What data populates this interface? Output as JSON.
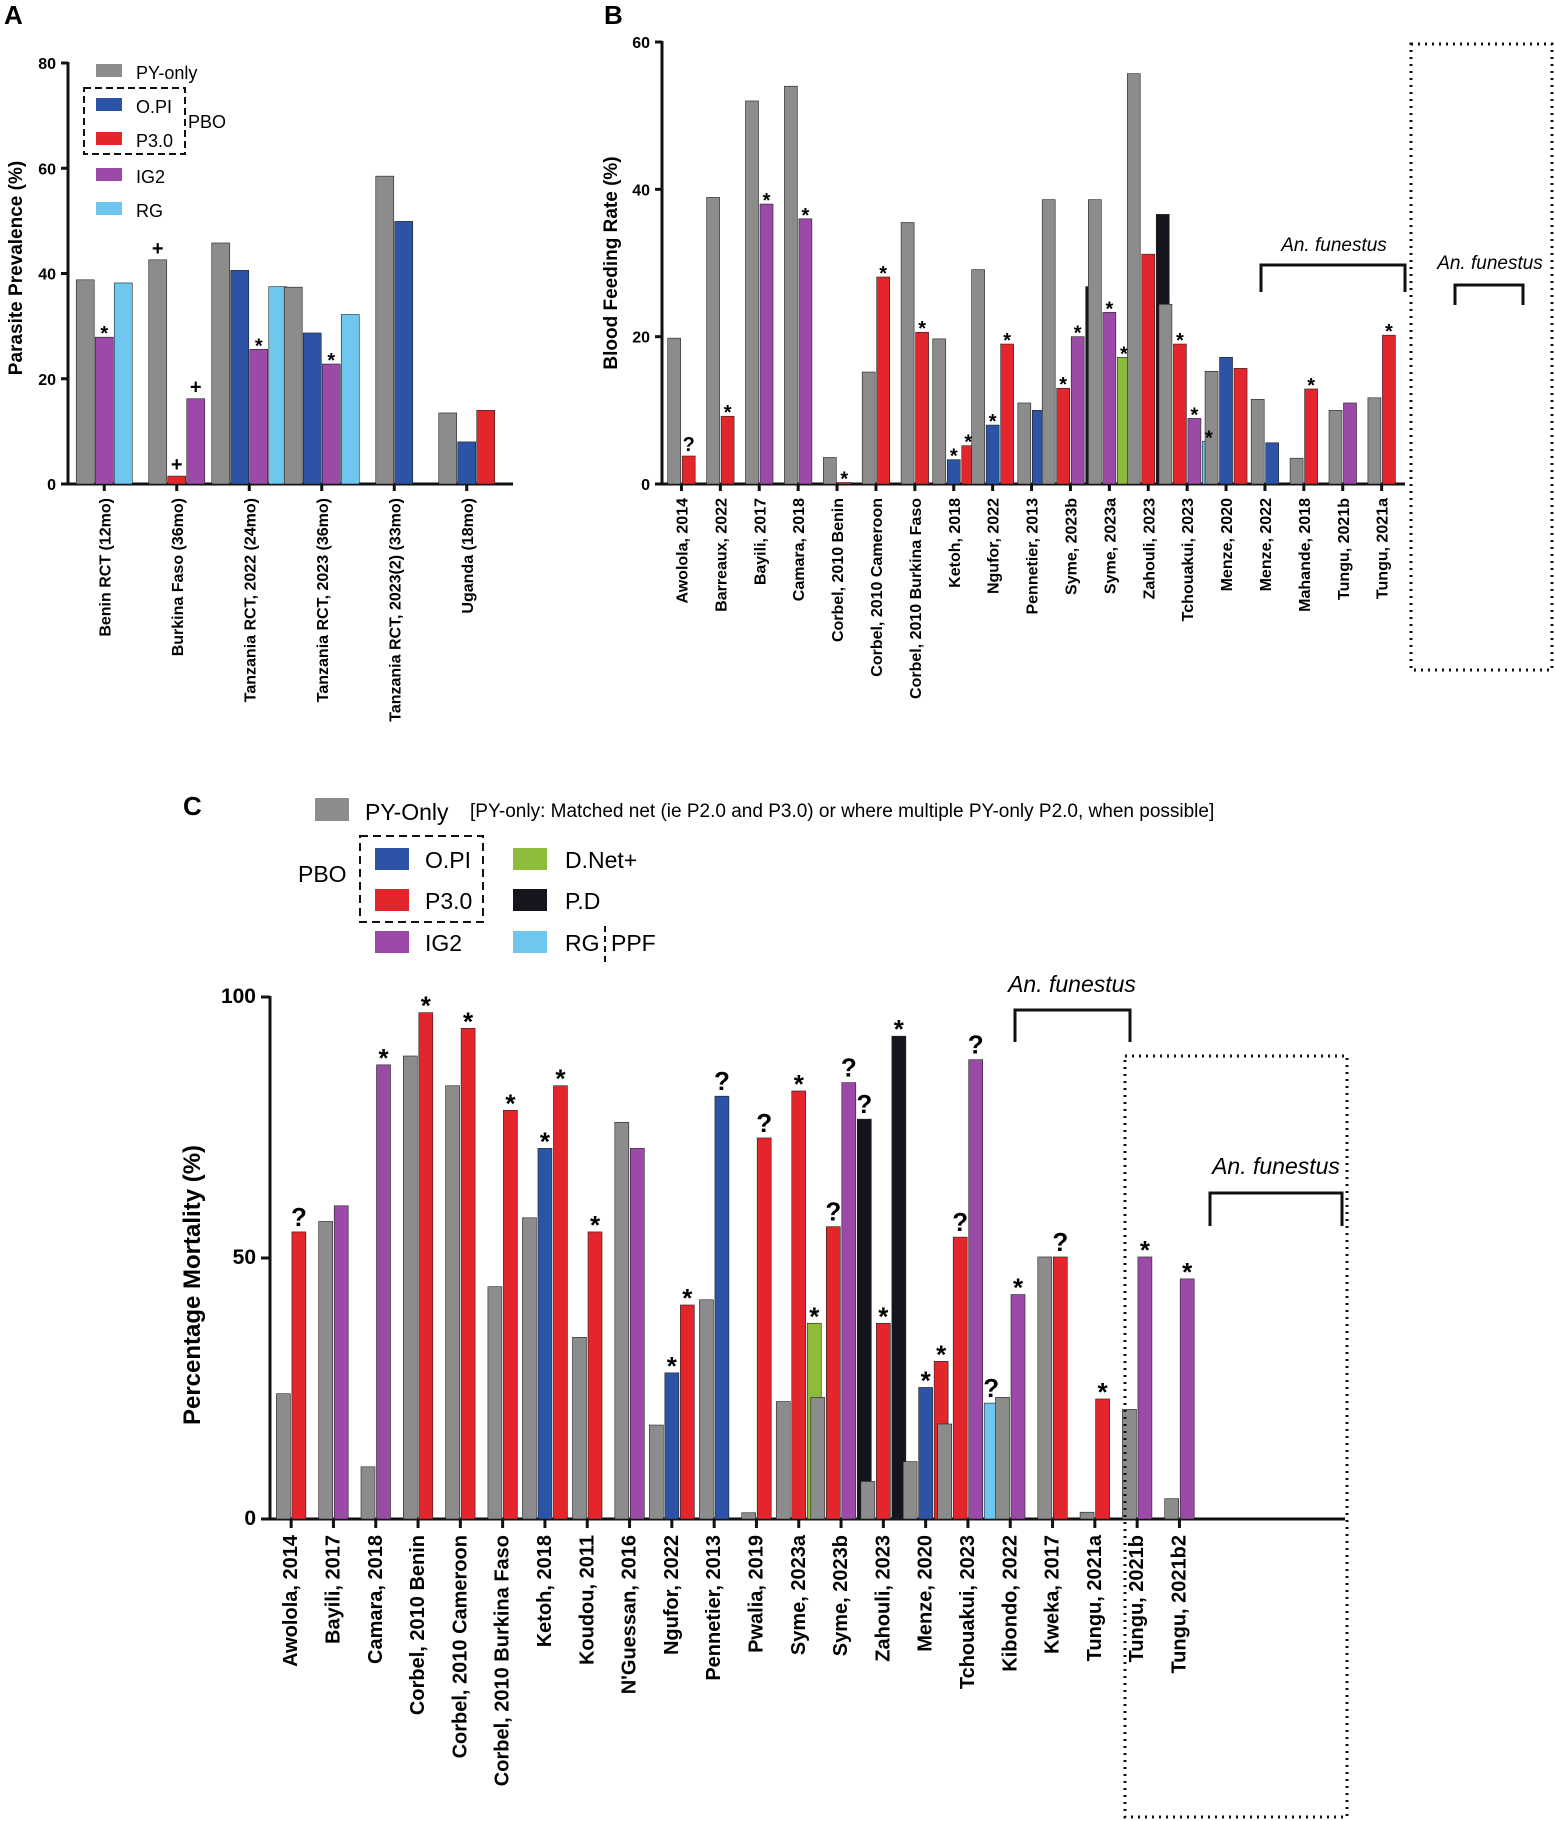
{
  "colors": {
    "PY-only": "#8c8c8c",
    "O.PI": "#2c53a5",
    "P3.0": "#e3262b",
    "IG2": "#9b4aa8",
    "RG": "#6fc6ee",
    "D.Net+": "#8dbb3a",
    "P.D": "#15151e"
  },
  "labels": {
    "panelA": "A",
    "panelB": "B",
    "panelC": "C",
    "pbo": "PBO",
    "anFunestus": "An. funestus",
    "ppf": "PPF",
    "legendA": [
      "PY-only",
      "O.PI",
      "P3.0",
      "IG2",
      "RG"
    ],
    "legendC": [
      "PY-Only",
      "O.PI",
      "P3.0",
      "IG2",
      "D.Net+",
      "P.D",
      "RG"
    ],
    "noteC": "[PY-only: Matched net (ie P2.0 and P3.0) or where multiple PY-only P2.0, when possible]"
  },
  "chart_data": [
    {
      "id": "A",
      "type": "bar",
      "ylabel": "Parasite Prevalence (%)",
      "ylim": [
        0,
        80
      ],
      "yticks": [
        0,
        20,
        40,
        60,
        80
      ],
      "legend": [
        "PY-only",
        "O.PI",
        "P3.0",
        "IG2",
        "RG"
      ],
      "groups": [
        {
          "label": "Benin RCT (12mo)",
          "bars": [
            {
              "s": "PY-only",
              "v": 38.8
            },
            {
              "s": "IG2",
              "v": 27.9,
              "m": "*"
            },
            {
              "s": "RG",
              "v": 38.2
            }
          ]
        },
        {
          "label": "Burkina Faso (36mo)",
          "bars": [
            {
              "s": "PY-only",
              "v": 42.6,
              "m": "+"
            },
            {
              "s": "P3.0",
              "v": 1.5,
              "m": "+"
            },
            {
              "s": "IG2",
              "v": 16.2,
              "m": "+"
            }
          ]
        },
        {
          "label": "Tanzania RCT, 2022 (24mo)",
          "bars": [
            {
              "s": "PY-only",
              "v": 45.8
            },
            {
              "s": "O.PI",
              "v": 40.6
            },
            {
              "s": "IG2",
              "v": 25.6,
              "m": "*"
            },
            {
              "s": "RG",
              "v": 37.5
            }
          ]
        },
        {
          "label": "Tanzania RCT, 2023 (36mo)",
          "bars": [
            {
              "s": "PY-only",
              "v": 37.4
            },
            {
              "s": "O.PI",
              "v": 28.7
            },
            {
              "s": "IG2",
              "v": 22.8,
              "m": "*"
            },
            {
              "s": "RG",
              "v": 32.2
            }
          ]
        },
        {
          "label": "Tanzania RCT, 2023(2) (33mo)",
          "bars": [
            {
              "s": "PY-only",
              "v": 58.5
            },
            {
              "s": "O.PI",
              "v": 49.9
            }
          ]
        },
        {
          "label": "Uganda (18mo)",
          "bars": [
            {
              "s": "PY-only",
              "v": 13.5
            },
            {
              "s": "O.PI",
              "v": 8.0
            },
            {
              "s": "P3.0",
              "v": 14.0
            }
          ]
        }
      ]
    },
    {
      "id": "B",
      "type": "bar",
      "ylabel": "Blood Feeding Rate (%)",
      "ylim": [
        0,
        60
      ],
      "yticks": [
        0,
        20,
        40,
        60
      ],
      "groups": [
        {
          "label": "Awolola, 2014",
          "bars": [
            {
              "s": "PY-only",
              "v": 19.8
            },
            {
              "s": "P3.0",
              "v": 3.8,
              "m": "?"
            }
          ]
        },
        {
          "label": "Barreaux, 2022",
          "bars": [
            {
              "s": "PY-only",
              "v": 38.9
            },
            {
              "s": "P3.0",
              "v": 9.2,
              "m": "*"
            }
          ]
        },
        {
          "label": "Bayili, 2017",
          "bars": [
            {
              "s": "PY-only",
              "v": 52.0
            },
            {
              "s": "IG2",
              "v": 38.0,
              "m": "*"
            }
          ]
        },
        {
          "label": "Camara, 2018",
          "bars": [
            {
              "s": "PY-only",
              "v": 54.0
            },
            {
              "s": "IG2",
              "v": 36.0,
              "m": "*"
            }
          ]
        },
        {
          "label": "Corbel, 2010 Benin",
          "bars": [
            {
              "s": "PY-only",
              "v": 3.6
            },
            {
              "s": "P3.0",
              "v": 0.2,
              "m": "*"
            }
          ]
        },
        {
          "label": "Corbel, 2010 Cameroon",
          "bars": [
            {
              "s": "PY-only",
              "v": 15.2
            },
            {
              "s": "P3.0",
              "v": 28.1,
              "m": "*"
            }
          ]
        },
        {
          "label": "Corbel, 2010 Burkina Faso",
          "bars": [
            {
              "s": "PY-only",
              "v": 35.5
            },
            {
              "s": "P3.0",
              "v": 20.6,
              "m": "*"
            }
          ]
        },
        {
          "label": "Ketoh, 2018",
          "bars": [
            {
              "s": "PY-only",
              "v": 19.7
            },
            {
              "s": "O.PI",
              "v": 3.3,
              "m": "*"
            },
            {
              "s": "P3.0",
              "v": 5.2,
              "m": "*"
            }
          ]
        },
        {
          "label": "Ngufor, 2022",
          "bars": [
            {
              "s": "PY-only",
              "v": 29.1
            },
            {
              "s": "O.PI",
              "v": 8.0,
              "m": "*"
            },
            {
              "s": "P3.0",
              "v": 19.0,
              "m": "*"
            }
          ]
        },
        {
          "label": "Pennetier, 2013",
          "bars": [
            {
              "s": "PY-only",
              "v": 11.0
            },
            {
              "s": "O.PI",
              "v": 10.0
            }
          ]
        },
        {
          "label": "Syme, 2023b",
          "bars": [
            {
              "s": "PY-only",
              "v": 38.6
            },
            {
              "s": "P3.0",
              "v": 13.0,
              "m": "*"
            },
            {
              "s": "IG2",
              "v": 20.0,
              "m": "*"
            },
            {
              "s": "P.D",
              "v": 26.8
            }
          ]
        },
        {
          "label": "Syme, 2023a",
          "bars": [
            {
              "s": "PY-only",
              "v": 38.6
            },
            {
              "s": "IG2",
              "v": 23.3,
              "m": "*"
            },
            {
              "s": "D.Net+",
              "v": 17.2,
              "m": "*"
            }
          ]
        },
        {
          "label": "Zahouli, 2023",
          "bars": [
            {
              "s": "PY-only",
              "v": 55.7
            },
            {
              "s": "P3.0",
              "v": 31.2
            },
            {
              "s": "P.D",
              "v": 36.6
            }
          ]
        },
        {
          "label": "Tchouakui, 2023",
          "bars": [
            {
              "s": "PY-only",
              "v": 24.4
            },
            {
              "s": "P3.0",
              "v": 19.0,
              "m": "*"
            },
            {
              "s": "IG2",
              "v": 8.9,
              "m": "*"
            },
            {
              "s": "RG",
              "v": 5.8,
              "m": "*"
            }
          ]
        },
        {
          "label": "Menze, 2020",
          "bars": [
            {
              "s": "PY-only",
              "v": 15.3
            },
            {
              "s": "O.PI",
              "v": 17.2
            },
            {
              "s": "P3.0",
              "v": 15.7
            }
          ]
        },
        {
          "label": "Menze, 2022",
          "bars": [
            {
              "s": "PY-only",
              "v": 11.5
            },
            {
              "s": "O.PI",
              "v": 5.6
            }
          ]
        },
        {
          "label": "Mahande, 2018",
          "bars": [
            {
              "s": "PY-only",
              "v": 3.5
            },
            {
              "s": "P3.0",
              "v": 12.9,
              "m": "*"
            }
          ]
        },
        {
          "label": "Tungu, 2021b",
          "bars": [
            {
              "s": "PY-only",
              "v": 10.0
            },
            {
              "s": "IG2",
              "v": 11.0
            }
          ]
        },
        {
          "label": "Tungu, 2021a",
          "bars": [
            {
              "s": "PY-only",
              "v": 11.7
            },
            {
              "s": "P3.0",
              "v": 20.2,
              "m": "*"
            }
          ]
        }
      ]
    },
    {
      "id": "C",
      "type": "bar",
      "ylabel": "Percentage Mortality (%)",
      "ylim": [
        0,
        100
      ],
      "yticks": [
        0,
        50,
        100
      ],
      "groups": [
        {
          "label": "Awolola, 2014",
          "bars": [
            {
              "s": "PY-only",
              "v": 24
            },
            {
              "s": "P3.0",
              "v": 55,
              "m": "?"
            }
          ]
        },
        {
          "label": "Bayili, 2017",
          "bars": [
            {
              "s": "PY-only",
              "v": 57
            },
            {
              "s": "IG2",
              "v": 60
            }
          ]
        },
        {
          "label": "Camara, 2018",
          "bars": [
            {
              "s": "PY-only",
              "v": 10
            },
            {
              "s": "IG2",
              "v": 87,
              "m": "*"
            }
          ]
        },
        {
          "label": "Corbel, 2010 Benin",
          "bars": [
            {
              "s": "PY-only",
              "v": 88.7
            },
            {
              "s": "P3.0",
              "v": 97,
              "m": "*"
            }
          ]
        },
        {
          "label": "Corbel, 2010 Cameroon",
          "bars": [
            {
              "s": "PY-only",
              "v": 83
            },
            {
              "s": "P3.0",
              "v": 94,
              "m": "*"
            }
          ]
        },
        {
          "label": "Corbel, 2010 Burkina Faso",
          "bars": [
            {
              "s": "PY-only",
              "v": 44.5
            },
            {
              "s": "P3.0",
              "v": 78.3,
              "m": "*"
            }
          ]
        },
        {
          "label": "Ketoh, 2018",
          "bars": [
            {
              "s": "PY-only",
              "v": 57.7
            },
            {
              "s": "O.PI",
              "v": 71,
              "m": "*"
            },
            {
              "s": "P3.0",
              "v": 83,
              "m": "*"
            }
          ]
        },
        {
          "label": "Koudou, 2011",
          "bars": [
            {
              "s": "PY-only",
              "v": 34.8
            },
            {
              "s": "P3.0",
              "v": 55,
              "m": "*"
            }
          ]
        },
        {
          "label": "N'Guessan, 2016",
          "bars": [
            {
              "s": "PY-only",
              "v": 76
            },
            {
              "s": "IG2",
              "v": 71
            }
          ]
        },
        {
          "label": "Ngufor, 2022",
          "bars": [
            {
              "s": "PY-only",
              "v": 18
            },
            {
              "s": "O.PI",
              "v": 28,
              "m": "*"
            },
            {
              "s": "P3.0",
              "v": 41,
              "m": "*"
            }
          ]
        },
        {
          "label": "Pennetier, 2013",
          "bars": [
            {
              "s": "PY-only",
              "v": 42
            },
            {
              "s": "O.PI",
              "v": 81,
              "m": "?"
            }
          ]
        },
        {
          "label": "Pwalia, 2019",
          "bars": [
            {
              "s": "PY-only",
              "v": 1.2
            },
            {
              "s": "P3.0",
              "v": 73,
              "m": "?"
            }
          ]
        },
        {
          "label": "Syme, 2023a",
          "bars": [
            {
              "s": "PY-only",
              "v": 22.5
            },
            {
              "s": "P3.0",
              "v": 82,
              "m": "*"
            },
            {
              "s": "D.Net+",
              "v": 37.5,
              "m": "*"
            }
          ]
        },
        {
          "label": "Syme, 2023b",
          "bars": [
            {
              "s": "PY-only",
              "v": 23.3
            },
            {
              "s": "P3.0",
              "v": 56,
              "m": "?"
            },
            {
              "s": "IG2",
              "v": 83.6,
              "m": "?"
            },
            {
              "s": "P.D",
              "v": 76.6,
              "m": "?"
            }
          ]
        },
        {
          "label": "Zahouli, 2023",
          "bars": [
            {
              "s": "PY-only",
              "v": 7.2
            },
            {
              "s": "P3.0",
              "v": 37.5,
              "m": "*"
            },
            {
              "s": "P.D",
              "v": 92.5,
              "m": "*"
            }
          ]
        },
        {
          "label": "Menze, 2020",
          "bars": [
            {
              "s": "PY-only",
              "v": 11
            },
            {
              "s": "O.PI",
              "v": 25.2,
              "m": "*"
            },
            {
              "s": "P3.0",
              "v": 30.2,
              "m": "*"
            }
          ]
        },
        {
          "label": "Tchouakui, 2023",
          "bars": [
            {
              "s": "PY-only",
              "v": 18.2
            },
            {
              "s": "P3.0",
              "v": 54,
              "m": "?"
            },
            {
              "s": "IG2",
              "v": 88,
              "m": "?"
            },
            {
              "s": "RG",
              "v": 22.2,
              "m": "?"
            }
          ]
        },
        {
          "label": "Kibondo, 2022",
          "bars": [
            {
              "s": "PY-only",
              "v": 23.3
            },
            {
              "s": "IG2",
              "v": 43,
              "m": "*"
            }
          ]
        },
        {
          "label": "Kweka, 2017",
          "bars": [
            {
              "s": "PY-only",
              "v": 50.2
            },
            {
              "s": "P3.0",
              "v": 50.2,
              "m": "?"
            }
          ]
        },
        {
          "label": "Tungu, 2021a",
          "bars": [
            {
              "s": "PY-only",
              "v": 1.3
            },
            {
              "s": "P3.0",
              "v": 23,
              "m": "*"
            }
          ]
        },
        {
          "label": "Tungu, 2021b",
          "bars": [
            {
              "s": "PY-only",
              "v": 21
            },
            {
              "s": "IG2",
              "v": 50.2,
              "m": "*"
            }
          ]
        },
        {
          "label": "Tungu, 2021b2",
          "bars": [
            {
              "s": "PY-only",
              "v": 3.9
            },
            {
              "s": "IG2",
              "v": 46,
              "m": "*"
            }
          ]
        }
      ]
    }
  ]
}
